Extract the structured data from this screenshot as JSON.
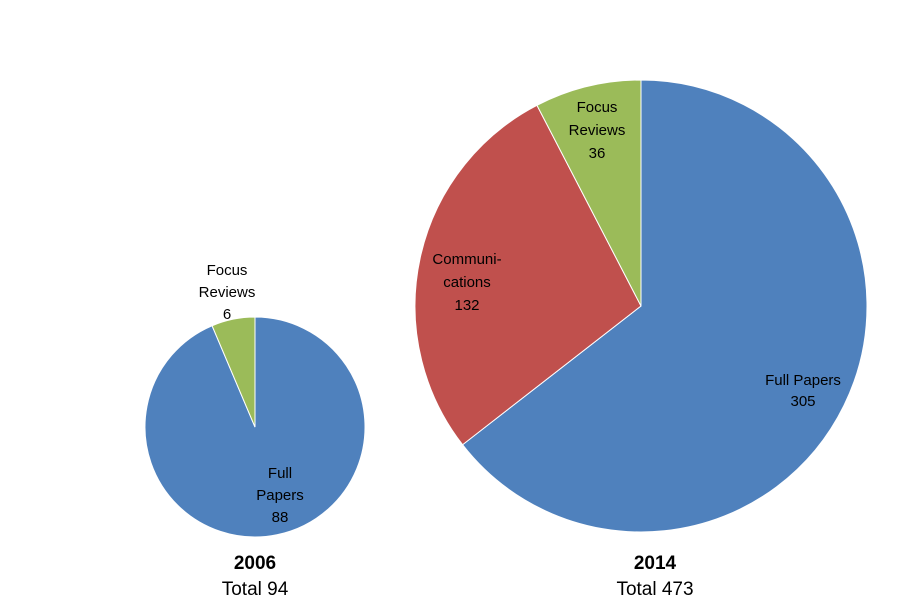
{
  "chart_data": [
    {
      "type": "pie",
      "title": "2006",
      "subtitle": "Total 94",
      "total": 94,
      "slices": [
        {
          "label": [
            "Full",
            "Papers",
            "88"
          ],
          "name": "Full Papers",
          "value": 88,
          "color": "#4F81BD"
        },
        {
          "label": [
            "Focus",
            "Reviews",
            "6"
          ],
          "name": "Focus Reviews",
          "value": 6,
          "color": "#9BBB59"
        }
      ]
    },
    {
      "type": "pie",
      "title": "2014",
      "subtitle": "Total 473",
      "total": 473,
      "slices": [
        {
          "label": [
            "Full Papers",
            "305"
          ],
          "name": "Full Papers",
          "value": 305,
          "color": "#4F81BD"
        },
        {
          "label": [
            "Communi-",
            "cations",
            "132"
          ],
          "name": "Communications",
          "value": 132,
          "color": "#C0504D"
        },
        {
          "label": [
            "Focus",
            "Reviews",
            "36"
          ],
          "name": "Focus Reviews",
          "value": 36,
          "color": "#9BBB59"
        }
      ]
    }
  ]
}
